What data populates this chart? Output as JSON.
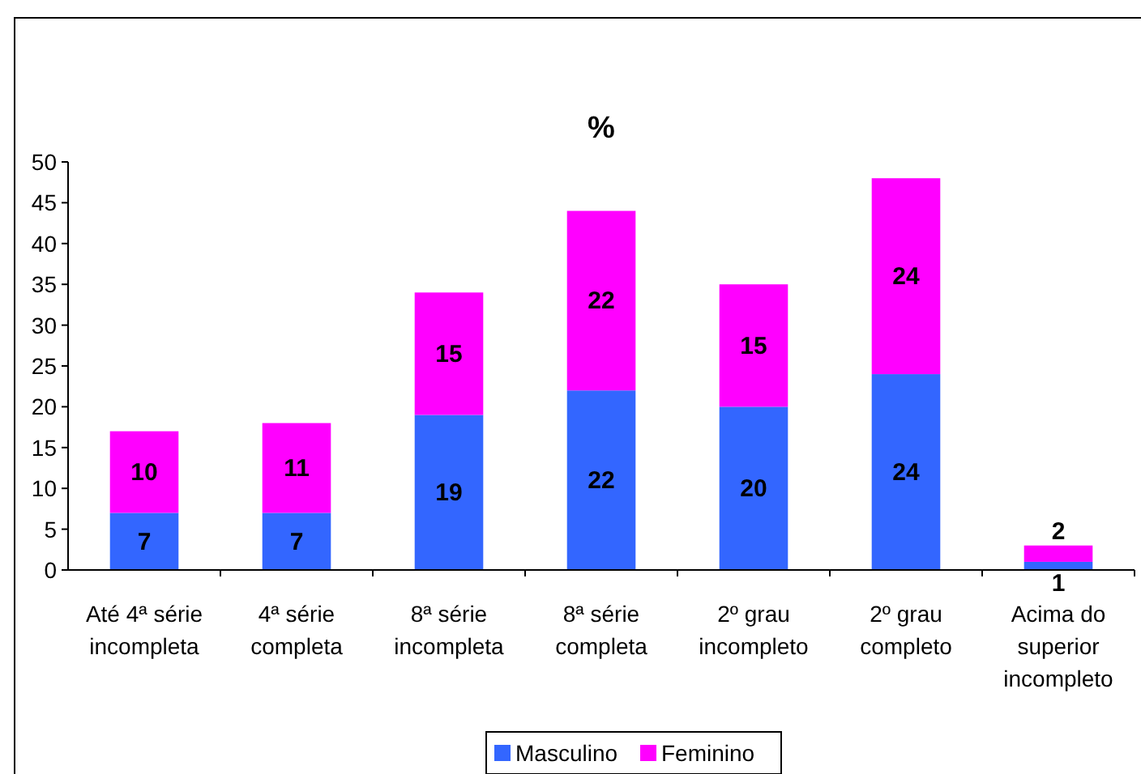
{
  "chart_data": {
    "type": "bar",
    "title": "%",
    "stacked": true,
    "data_labels": true,
    "legend": "bottom",
    "grid": false,
    "categories": [
      "Até 4ª série incompleta",
      "4ª série completa",
      "8ª série incompleta",
      "8ª série completa",
      "2º grau incompleto",
      "2º grau completo",
      "Acima do superior incompleto"
    ],
    "series": [
      {
        "name": "Masculino",
        "color": "#3366ff",
        "values": [
          7,
          7,
          19,
          22,
          20,
          24,
          1
        ]
      },
      {
        "name": "Feminino",
        "color": "#ff00ff",
        "values": [
          10,
          11,
          15,
          22,
          15,
          24,
          2
        ]
      }
    ],
    "ylim": [
      0,
      50
    ],
    "yticks": [
      0,
      5,
      10,
      15,
      20,
      25,
      30,
      35,
      40,
      45,
      50
    ]
  }
}
